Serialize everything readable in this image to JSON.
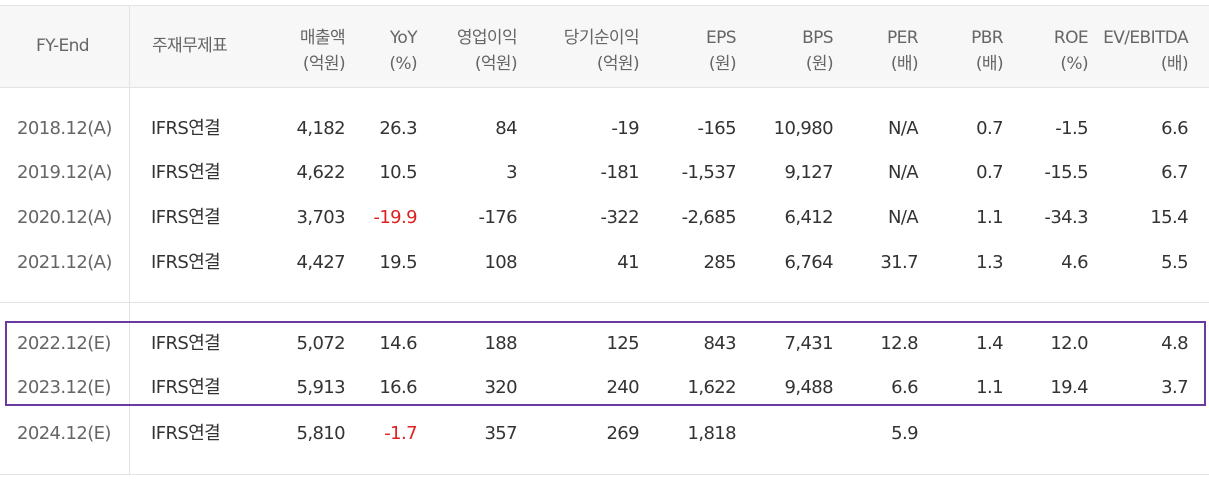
{
  "header": {
    "fy_end": "FY-End",
    "subject": "주재무제표",
    "sales": [
      "매출액",
      "(억원)"
    ],
    "yoy": [
      "YoY",
      "(%)"
    ],
    "op_income": [
      "영업이익",
      "(억원)"
    ],
    "net_income": [
      "당기순이익",
      "(억원)"
    ],
    "eps": [
      "EPS",
      "(원)"
    ],
    "bps": [
      "BPS",
      "(원)"
    ],
    "per": [
      "PER",
      "(배)"
    ],
    "pbr": [
      "PBR",
      "(배)"
    ],
    "roe": [
      "ROE",
      "(%)"
    ],
    "ev_ebitda": [
      "EV/EBITDA",
      "(배)"
    ]
  },
  "colors": {
    "negative": "#e02020",
    "highlight_border": "#6a3aa0"
  },
  "rows": [
    {
      "fy": "2018.12(A)",
      "subject": "IFRS연결",
      "sales": "4,182",
      "yoy": "26.3",
      "op": "84",
      "net": "-19",
      "eps": "-165",
      "bps": "10,980",
      "per": "N/A",
      "pbr": "0.7",
      "roe": "-1.5",
      "ev": "6.6"
    },
    {
      "fy": "2019.12(A)",
      "subject": "IFRS연결",
      "sales": "4,622",
      "yoy": "10.5",
      "op": "3",
      "net": "-181",
      "eps": "-1,537",
      "bps": "9,127",
      "per": "N/A",
      "pbr": "0.7",
      "roe": "-15.5",
      "ev": "6.7"
    },
    {
      "fy": "2020.12(A)",
      "subject": "IFRS연결",
      "sales": "3,703",
      "yoy": "-19.9",
      "op": "-176",
      "net": "-322",
      "eps": "-2,685",
      "bps": "6,412",
      "per": "N/A",
      "pbr": "1.1",
      "roe": "-34.3",
      "ev": "15.4"
    },
    {
      "fy": "2021.12(A)",
      "subject": "IFRS연결",
      "sales": "4,427",
      "yoy": "19.5",
      "op": "108",
      "net": "41",
      "eps": "285",
      "bps": "6,764",
      "per": "31.7",
      "pbr": "1.3",
      "roe": "4.6",
      "ev": "5.5"
    },
    {
      "fy": "2022.12(E)",
      "subject": "IFRS연결",
      "sales": "5,072",
      "yoy": "14.6",
      "op": "188",
      "net": "125",
      "eps": "843",
      "bps": "7,431",
      "per": "12.8",
      "pbr": "1.4",
      "roe": "12.0",
      "ev": "4.8"
    },
    {
      "fy": "2023.12(E)",
      "subject": "IFRS연결",
      "sales": "5,913",
      "yoy": "16.6",
      "op": "320",
      "net": "240",
      "eps": "1,622",
      "bps": "9,488",
      "per": "6.6",
      "pbr": "1.1",
      "roe": "19.4",
      "ev": "3.7"
    },
    {
      "fy": "2024.12(E)",
      "subject": "IFRS연결",
      "sales": "5,810",
      "yoy": "-1.7",
      "op": "357",
      "net": "269",
      "eps": "1,818",
      "bps": "",
      "per": "5.9",
      "pbr": "",
      "roe": "",
      "ev": ""
    }
  ]
}
